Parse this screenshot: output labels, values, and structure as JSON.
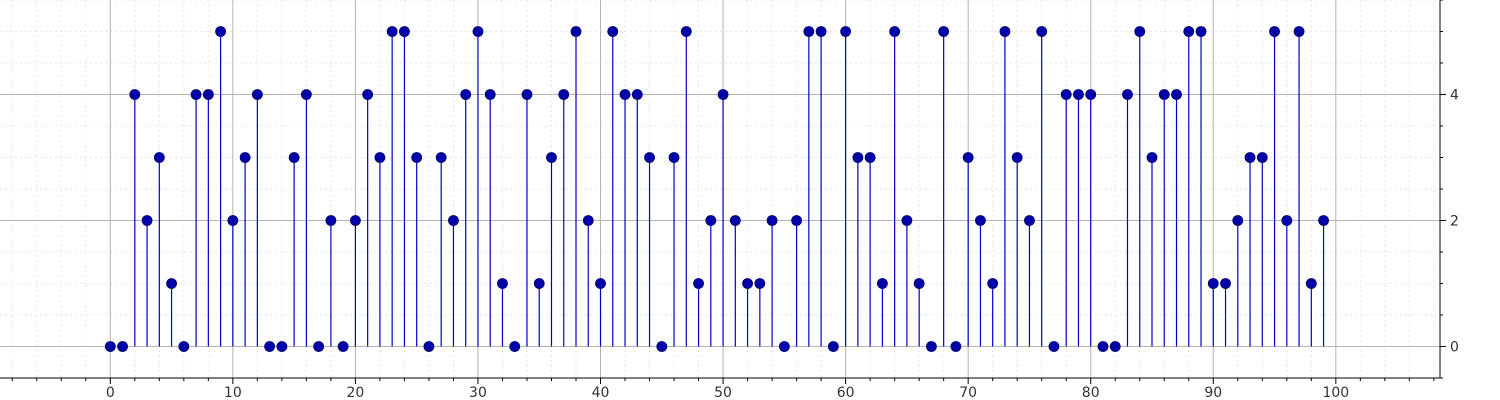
{
  "chart_data": {
    "type": "stem",
    "title": "",
    "xlabel": "",
    "ylabel": "",
    "xlim": [
      -9,
      108.5
    ],
    "ylim": [
      -0.5,
      5.5
    ],
    "x_ticks": [
      0,
      10,
      20,
      30,
      40,
      50,
      60,
      70,
      80,
      90,
      100
    ],
    "y_ticks": [
      0,
      2,
      4
    ],
    "grid": true,
    "y_axis_position": "right",
    "colors": {
      "stem": "#0000cc",
      "marker": "#0000aa",
      "grid_major": "#b4b4b4",
      "grid_minor": "#e6e6e6",
      "axis": "#000000"
    },
    "series": [
      {
        "x": [
          0,
          1,
          2,
          3,
          4,
          5,
          6,
          7,
          8,
          9,
          10,
          11,
          12,
          13,
          14,
          15,
          16,
          17,
          18,
          19,
          20,
          21,
          22,
          23,
          24,
          25,
          26,
          27,
          28,
          29,
          30,
          31,
          32,
          33,
          34,
          35,
          36,
          37,
          38,
          39,
          40,
          41,
          42,
          43,
          44,
          45,
          46,
          47,
          48,
          49,
          50,
          51,
          52,
          53,
          54,
          55,
          56,
          57,
          58,
          59,
          60,
          61,
          62,
          63,
          64,
          65,
          66,
          67,
          68,
          69,
          70,
          71,
          72,
          73,
          74,
          75,
          76,
          77,
          78,
          79,
          80,
          81,
          82,
          83,
          84,
          85,
          86,
          87,
          88,
          89,
          90,
          91,
          92,
          93,
          94,
          95,
          96,
          97,
          98,
          99
        ],
        "values": [
          0,
          0,
          4,
          2,
          3,
          1,
          0,
          4,
          4,
          5,
          2,
          3,
          4,
          0,
          0,
          3,
          4,
          0,
          2,
          0,
          2,
          4,
          3,
          5,
          5,
          3,
          0,
          3,
          2,
          4,
          5,
          4,
          1,
          0,
          4,
          1,
          3,
          4,
          5,
          2,
          1,
          5,
          4,
          4,
          3,
          0,
          3,
          5,
          1,
          2,
          4,
          2,
          1,
          1,
          2,
          0,
          2,
          5,
          5,
          0,
          5,
          3,
          3,
          1,
          5,
          2,
          1,
          0,
          5,
          0,
          3,
          2,
          1,
          5,
          3,
          2,
          5,
          0,
          4,
          4,
          4,
          0,
          0,
          4,
          5,
          3,
          4,
          4,
          5,
          5,
          1,
          1,
          2,
          3,
          3,
          5,
          2,
          5,
          1,
          2
        ]
      }
    ]
  }
}
